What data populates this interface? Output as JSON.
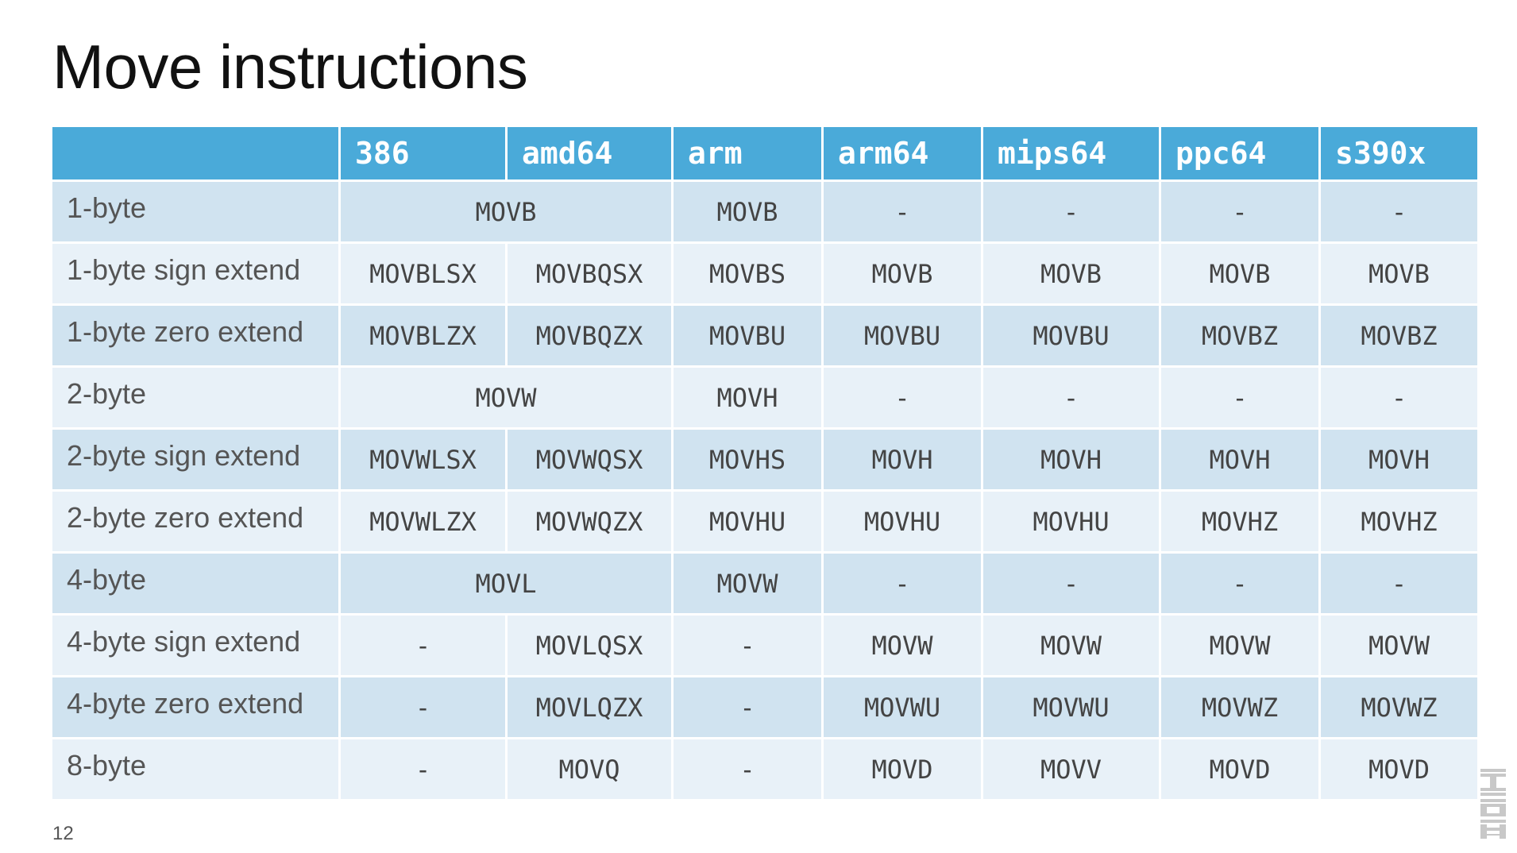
{
  "title": "Move instructions",
  "page_number": "12",
  "logo": {
    "icon": "ibm-logo-icon",
    "color": "#c8c8c8"
  },
  "colors": {
    "header_bg": "#4aaad9",
    "row_dark": "#d0e3f0",
    "row_light": "#e8f1f8"
  },
  "table": {
    "columns": [
      "",
      "386",
      "amd64",
      "arm",
      "arm64",
      "mips64",
      "ppc64",
      "s390x"
    ],
    "rows": [
      {
        "label": "1-byte",
        "cells": [
          {
            "text": "MOVB",
            "span": 2
          },
          {
            "text": "MOVB"
          },
          {
            "text": "-"
          },
          {
            "text": "-"
          },
          {
            "text": "-"
          },
          {
            "text": "-"
          }
        ]
      },
      {
        "label": "1-byte sign extend",
        "cells": [
          {
            "text": "MOVBLSX"
          },
          {
            "text": "MOVBQSX"
          },
          {
            "text": "MOVBS"
          },
          {
            "text": "MOVB"
          },
          {
            "text": "MOVB"
          },
          {
            "text": "MOVB"
          },
          {
            "text": "MOVB"
          }
        ]
      },
      {
        "label": "1-byte zero extend",
        "cells": [
          {
            "text": "MOVBLZX"
          },
          {
            "text": "MOVBQZX"
          },
          {
            "text": "MOVBU"
          },
          {
            "text": "MOVBU"
          },
          {
            "text": "MOVBU"
          },
          {
            "text": "MOVBZ"
          },
          {
            "text": "MOVBZ"
          }
        ]
      },
      {
        "label": "2-byte",
        "cells": [
          {
            "text": "MOVW",
            "span": 2
          },
          {
            "text": "MOVH"
          },
          {
            "text": "-"
          },
          {
            "text": "-"
          },
          {
            "text": "-"
          },
          {
            "text": "-"
          }
        ]
      },
      {
        "label": "2-byte sign extend",
        "cells": [
          {
            "text": "MOVWLSX"
          },
          {
            "text": "MOVWQSX"
          },
          {
            "text": "MOVHS"
          },
          {
            "text": "MOVH"
          },
          {
            "text": "MOVH"
          },
          {
            "text": "MOVH"
          },
          {
            "text": "MOVH"
          }
        ]
      },
      {
        "label": "2-byte zero extend",
        "cells": [
          {
            "text": "MOVWLZX"
          },
          {
            "text": "MOVWQZX"
          },
          {
            "text": "MOVHU"
          },
          {
            "text": "MOVHU"
          },
          {
            "text": "MOVHU"
          },
          {
            "text": "MOVHZ"
          },
          {
            "text": "MOVHZ"
          }
        ]
      },
      {
        "label": "4-byte",
        "cells": [
          {
            "text": "MOVL",
            "span": 2
          },
          {
            "text": "MOVW"
          },
          {
            "text": "-"
          },
          {
            "text": "-"
          },
          {
            "text": "-"
          },
          {
            "text": "-"
          }
        ]
      },
      {
        "label": "4-byte sign extend",
        "cells": [
          {
            "text": "-"
          },
          {
            "text": "MOVLQSX"
          },
          {
            "text": "-"
          },
          {
            "text": "MOVW"
          },
          {
            "text": "MOVW"
          },
          {
            "text": "MOVW"
          },
          {
            "text": "MOVW"
          }
        ]
      },
      {
        "label": "4-byte zero extend",
        "cells": [
          {
            "text": "-"
          },
          {
            "text": "MOVLQZX"
          },
          {
            "text": "-"
          },
          {
            "text": "MOVWU"
          },
          {
            "text": "MOVWU"
          },
          {
            "text": "MOVWZ"
          },
          {
            "text": "MOVWZ"
          }
        ]
      },
      {
        "label": "8-byte",
        "cells": [
          {
            "text": "-"
          },
          {
            "text": "MOVQ"
          },
          {
            "text": "-"
          },
          {
            "text": "MOVD"
          },
          {
            "text": "MOVV"
          },
          {
            "text": "MOVD"
          },
          {
            "text": "MOVD"
          }
        ]
      }
    ]
  }
}
